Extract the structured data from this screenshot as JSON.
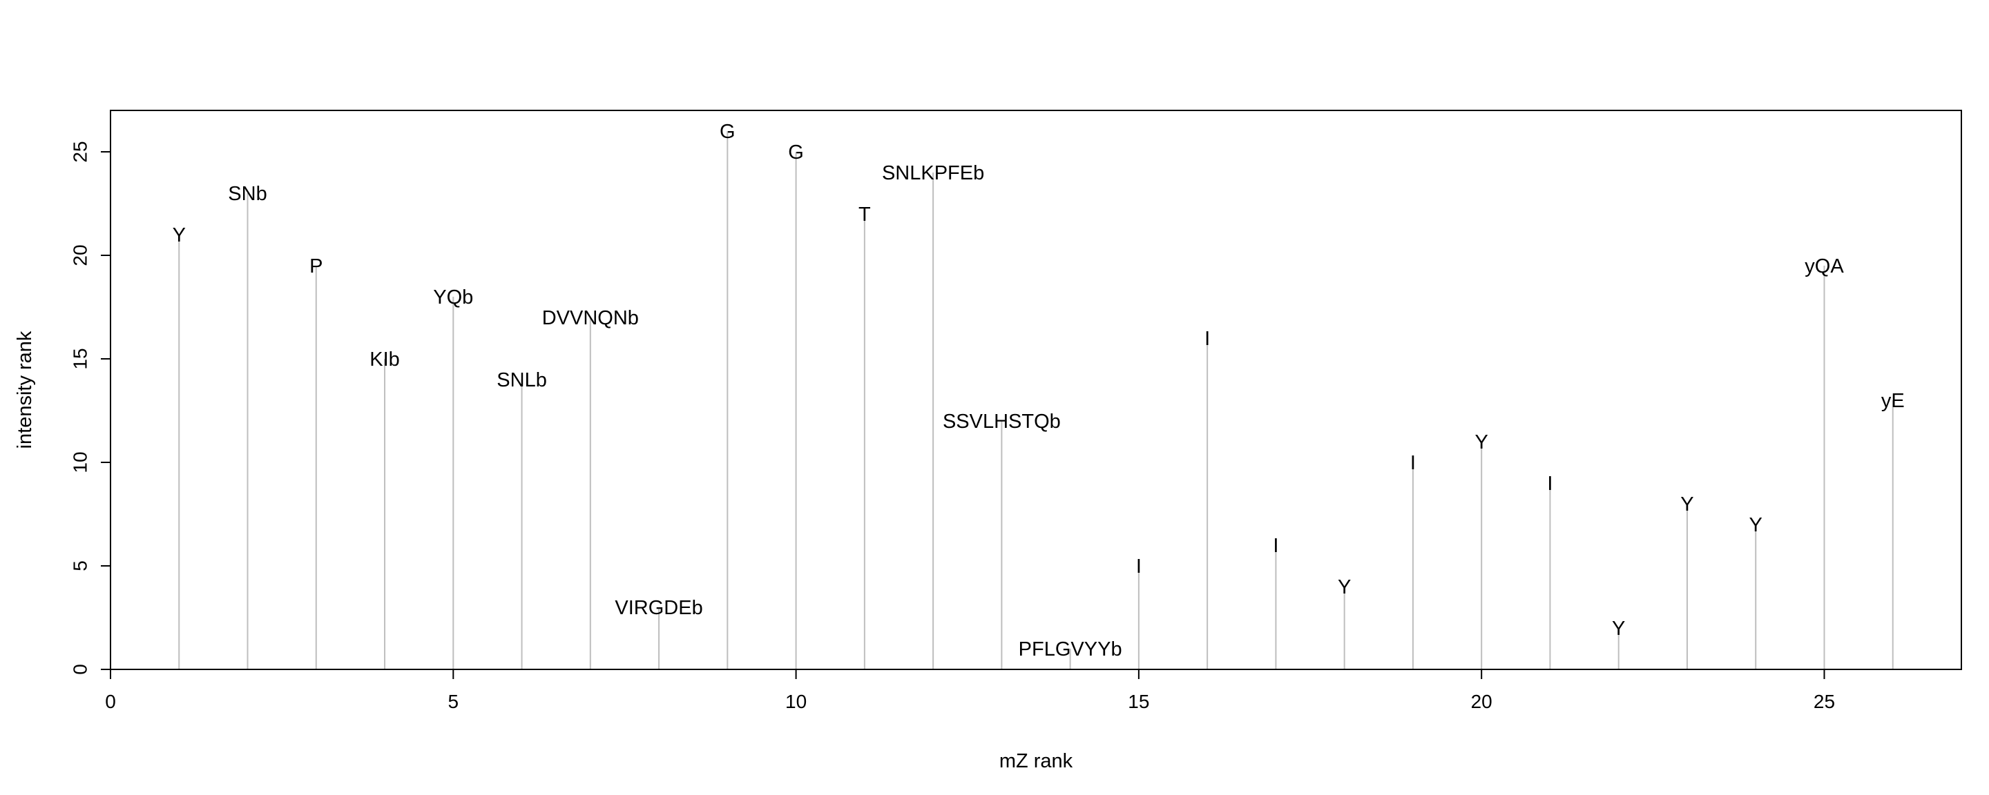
{
  "chart_data": {
    "type": "bar",
    "style": "vertical-lines",
    "xlabel": "mZ rank",
    "ylabel": "intensity rank",
    "xlim": [
      0,
      27
    ],
    "ylim": [
      0,
      27
    ],
    "x_ticks": [
      0,
      5,
      10,
      15,
      20,
      25
    ],
    "y_ticks": [
      0,
      5,
      10,
      15,
      20,
      25
    ],
    "grid": false,
    "line_color": "#bebebe",
    "points": [
      {
        "x": 1,
        "y": 21,
        "label": "Y"
      },
      {
        "x": 2,
        "y": 23,
        "label": "SNb"
      },
      {
        "x": 3,
        "y": 19.5,
        "label": "P"
      },
      {
        "x": 4,
        "y": 15,
        "label": "KIb"
      },
      {
        "x": 5,
        "y": 18,
        "label": "YQb"
      },
      {
        "x": 6,
        "y": 14,
        "label": "SNLb"
      },
      {
        "x": 7,
        "y": 17,
        "label": "DVVNQNb"
      },
      {
        "x": 8,
        "y": 3,
        "label": "VIRGDEb"
      },
      {
        "x": 9,
        "y": 26,
        "label": "G"
      },
      {
        "x": 10,
        "y": 25,
        "label": "G"
      },
      {
        "x": 11,
        "y": 22,
        "label": "T"
      },
      {
        "x": 12,
        "y": 24,
        "label": "SNLKPFEb"
      },
      {
        "x": 13,
        "y": 12,
        "label": "SSVLHSTQb"
      },
      {
        "x": 14,
        "y": 1,
        "label": "PFLGVYYb"
      },
      {
        "x": 15,
        "y": 5,
        "label": "I"
      },
      {
        "x": 16,
        "y": 16,
        "label": "I"
      },
      {
        "x": 17,
        "y": 6,
        "label": "I"
      },
      {
        "x": 18,
        "y": 4,
        "label": "Y"
      },
      {
        "x": 19,
        "y": 10,
        "label": "I"
      },
      {
        "x": 20,
        "y": 11,
        "label": "Y"
      },
      {
        "x": 21,
        "y": 9,
        "label": "I"
      },
      {
        "x": 22,
        "y": 2,
        "label": "Y"
      },
      {
        "x": 23,
        "y": 8,
        "label": "Y"
      },
      {
        "x": 24,
        "y": 7,
        "label": "Y"
      },
      {
        "x": 25,
        "y": 19.5,
        "label": "yQA"
      },
      {
        "x": 26,
        "y": 13,
        "label": "yE"
      }
    ]
  }
}
